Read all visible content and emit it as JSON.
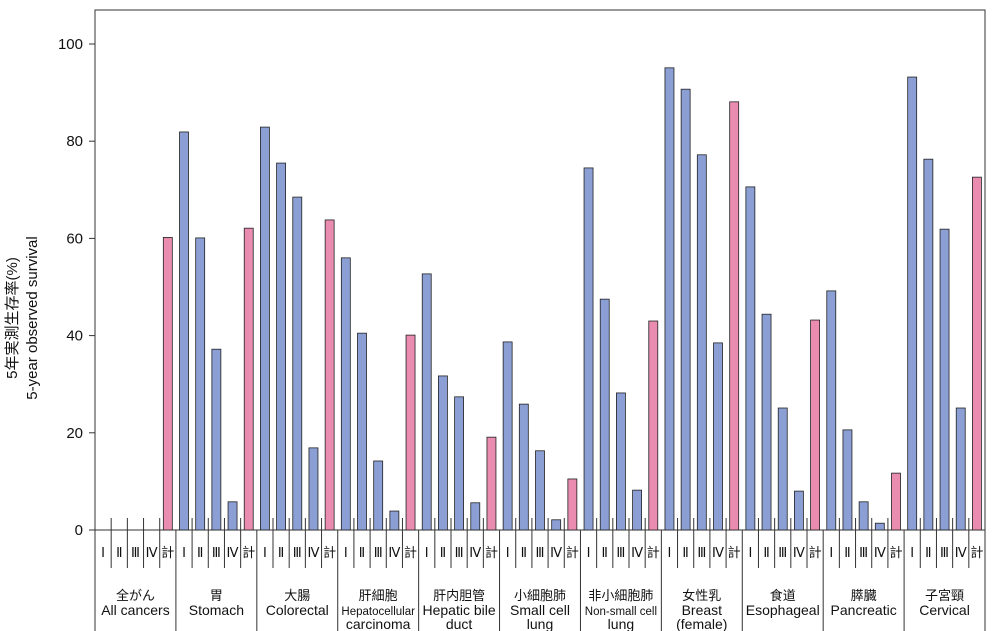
{
  "chart_data": {
    "type": "bar",
    "ylabel_jp": "5年実測生存率(%)",
    "ylabel": "5-year observed survival",
    "ylim": [
      0,
      100
    ],
    "yticks": [
      0,
      20,
      40,
      60,
      80,
      100
    ],
    "stage_labels": [
      "Ⅰ",
      "Ⅱ",
      "Ⅲ",
      "Ⅳ",
      "計"
    ],
    "colors": {
      "stage": "#8b9fd4",
      "total": "#e98cb0"
    },
    "groups": [
      {
        "jp": "全がん",
        "en": [
          "All cancers"
        ],
        "values": [
          null,
          null,
          null,
          null,
          60.2
        ]
      },
      {
        "jp": "胃",
        "en": [
          "Stomach"
        ],
        "values": [
          81.9,
          60.1,
          37.2,
          5.8,
          62.1
        ]
      },
      {
        "jp": "大腸",
        "en": [
          "Colorectal"
        ],
        "values": [
          82.9,
          75.5,
          68.5,
          16.9,
          63.8
        ]
      },
      {
        "jp": "肝細胞",
        "en": [
          "Hepatocellular",
          "carcinoma"
        ],
        "values": [
          56.0,
          40.5,
          14.2,
          3.9,
          40.1
        ]
      },
      {
        "jp": "肝内胆管",
        "en": [
          "Hepatic bile",
          "duct"
        ],
        "values": [
          52.7,
          31.7,
          27.4,
          5.6,
          19.1
        ]
      },
      {
        "jp": "小細胞肺",
        "en": [
          "Small cell",
          "lung"
        ],
        "values": [
          38.7,
          25.9,
          16.3,
          2.1,
          10.5
        ]
      },
      {
        "jp": "非小細胞肺",
        "en": [
          "Non-small cell",
          "lung"
        ],
        "values": [
          74.5,
          47.5,
          28.2,
          8.2,
          43.0
        ]
      },
      {
        "jp": "女性乳",
        "en": [
          "Breast",
          "(female)"
        ],
        "values": [
          95.1,
          90.7,
          77.2,
          38.5,
          88.1
        ]
      },
      {
        "jp": "食道",
        "en": [
          "Esophageal"
        ],
        "values": [
          70.6,
          44.4,
          25.1,
          8.0,
          43.2
        ]
      },
      {
        "jp": "膵臓",
        "en": [
          "Pancreatic"
        ],
        "values": [
          49.2,
          20.6,
          5.8,
          1.4,
          11.7
        ]
      },
      {
        "jp": "子宮頸",
        "en": [
          "Cervical"
        ],
        "values": [
          93.2,
          76.3,
          61.9,
          25.1,
          72.6
        ]
      }
    ]
  }
}
